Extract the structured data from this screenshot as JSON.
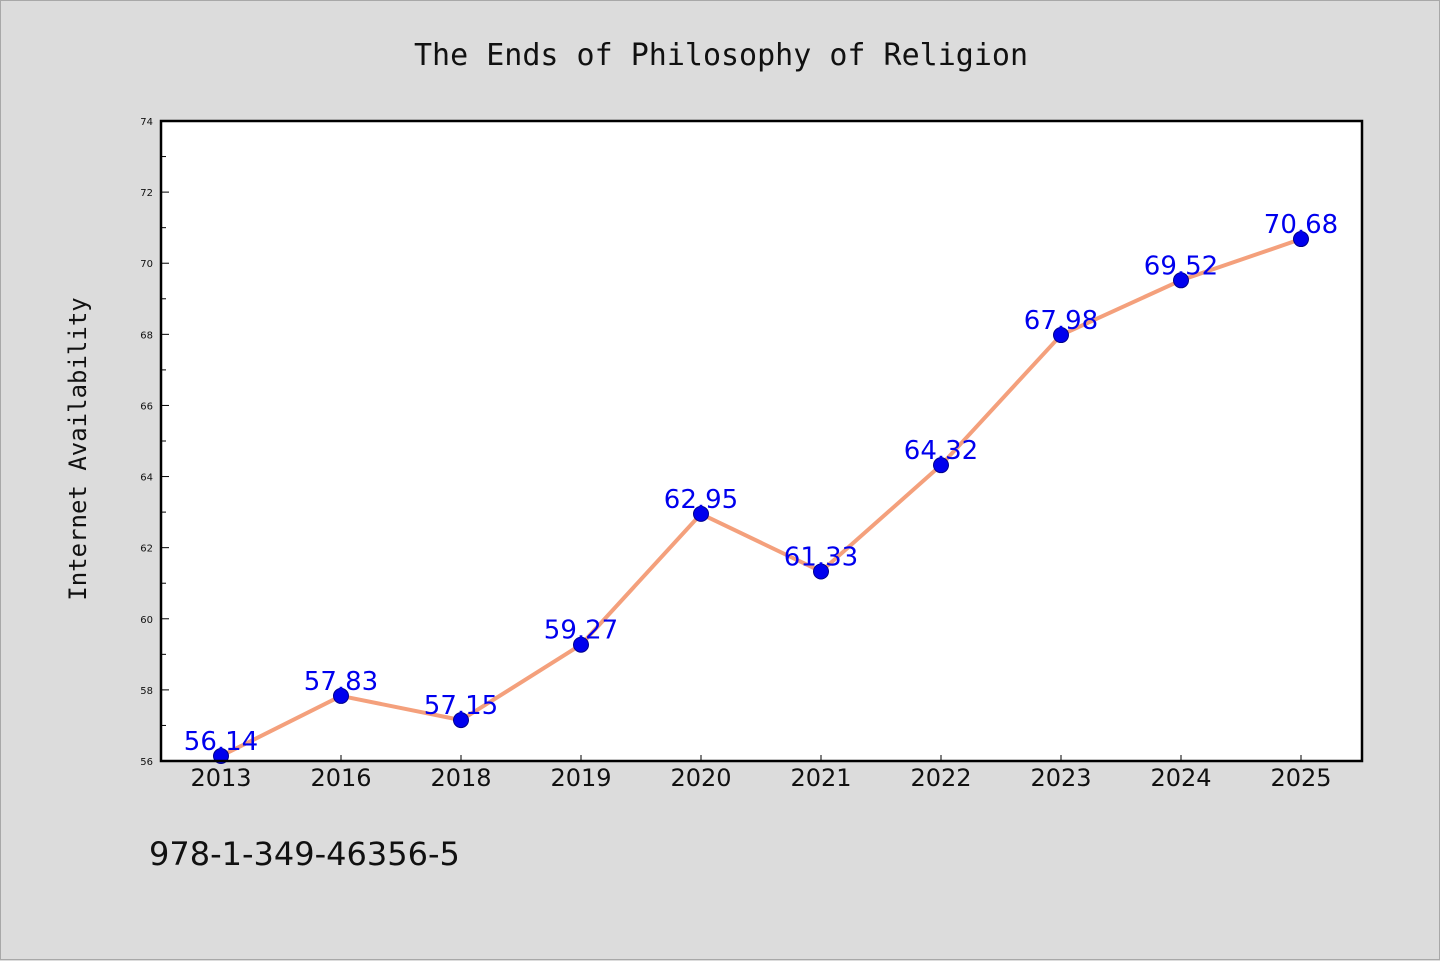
{
  "chart_data": {
    "type": "line",
    "title": "The Ends of Philosophy of Religion",
    "xlabel": "",
    "ylabel": "Internet Availability",
    "categories": [
      "2013",
      "2016",
      "2018",
      "2019",
      "2020",
      "2021",
      "2022",
      "2023",
      "2024",
      "2025"
    ],
    "values": [
      56.14,
      57.83,
      57.15,
      59.27,
      62.95,
      61.33,
      64.32,
      67.98,
      69.52,
      70.68
    ],
    "ylim": [
      56,
      74
    ],
    "yticks": [
      56,
      58,
      60,
      62,
      64,
      66,
      68,
      70,
      72,
      74
    ],
    "grid": false,
    "legend": "none",
    "line_color": "#f4a07c",
    "marker_color": "#0000ee",
    "label_color": "#0000ee"
  },
  "footer": {
    "isbn": "978-1-349-46356-5"
  }
}
